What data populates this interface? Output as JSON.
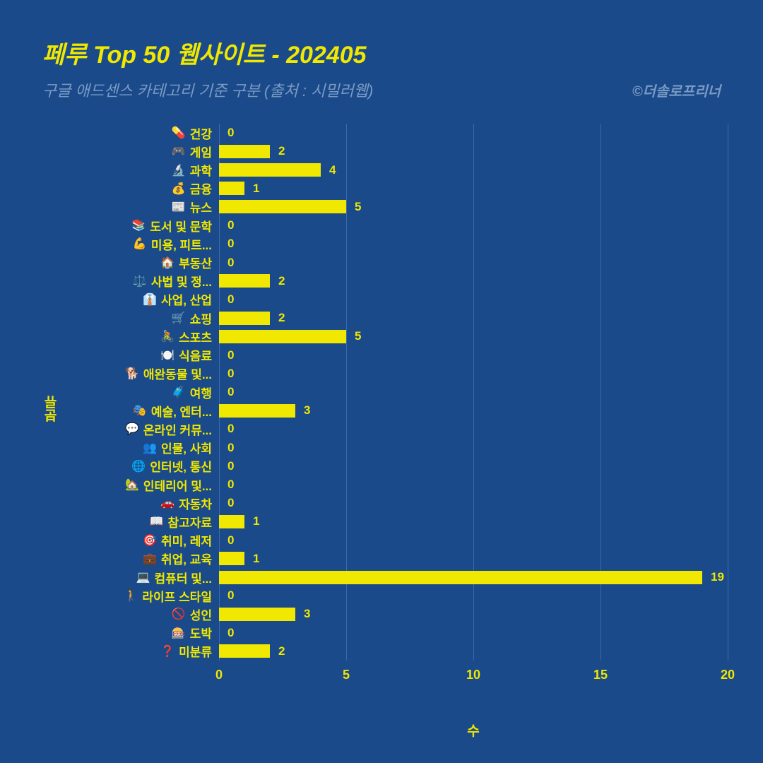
{
  "header": {
    "title": "페루 Top 50 웹사이트 - 202405",
    "subtitle": "구글 애드센스 카테고리 기준 구분 (출처 : 시밀러웹)",
    "credit": "©더솔로프리너"
  },
  "chart": {
    "type": "bar-horizontal",
    "x_axis_label": "수",
    "y_axis_label": "분류",
    "xlim": [
      0,
      20
    ],
    "xtick_step": 5,
    "xticks": [
      0,
      5,
      10,
      15,
      20
    ],
    "bar_color": "#f0e800",
    "text_color": "#f0e800",
    "grid_color": "#3a6aa8",
    "background_color": "#1a4a8a",
    "subtitle_color": "#7a9ac4",
    "label_fontsize": 17,
    "title_fontsize": 34,
    "categories": [
      {
        "emoji": "💊",
        "label": "건강",
        "value": 0
      },
      {
        "emoji": "🎮",
        "label": "게임",
        "value": 2
      },
      {
        "emoji": "🔬",
        "label": "과학",
        "value": 4
      },
      {
        "emoji": "💰",
        "label": "금융",
        "value": 1
      },
      {
        "emoji": "📰",
        "label": "뉴스",
        "value": 5
      },
      {
        "emoji": "📚",
        "label": "도서 및 문학",
        "value": 0
      },
      {
        "emoji": "💪",
        "label": "미용, 피트...",
        "value": 0
      },
      {
        "emoji": "🏠",
        "label": "부동산",
        "value": 0
      },
      {
        "emoji": "⚖️",
        "label": "사법 및 정...",
        "value": 2
      },
      {
        "emoji": "👔",
        "label": "사업, 산업",
        "value": 0
      },
      {
        "emoji": "🛒",
        "label": "쇼핑",
        "value": 2
      },
      {
        "emoji": "🚴",
        "label": "스포츠",
        "value": 5
      },
      {
        "emoji": "🍽️",
        "label": "식음료",
        "value": 0
      },
      {
        "emoji": "🐕",
        "label": "애완동물 및...",
        "value": 0
      },
      {
        "emoji": "🧳",
        "label": "여행",
        "value": 0
      },
      {
        "emoji": "🎭",
        "label": "예술, 엔터...",
        "value": 3
      },
      {
        "emoji": "💬",
        "label": "온라인 커뮤...",
        "value": 0
      },
      {
        "emoji": "👥",
        "label": "인물, 사회",
        "value": 0
      },
      {
        "emoji": "🌐",
        "label": "인터넷, 통신",
        "value": 0
      },
      {
        "emoji": "🏡",
        "label": "인테리어 및...",
        "value": 0
      },
      {
        "emoji": "🚗",
        "label": "자동차",
        "value": 0
      },
      {
        "emoji": "📖",
        "label": "참고자료",
        "value": 1
      },
      {
        "emoji": "🎯",
        "label": "취미, 레저",
        "value": 0
      },
      {
        "emoji": "💼",
        "label": "취업, 교육",
        "value": 1
      },
      {
        "emoji": "💻",
        "label": "컴퓨터 및...",
        "value": 19
      },
      {
        "emoji": "🚶",
        "label": "라이프 스타일",
        "value": 0
      },
      {
        "emoji": "🚫",
        "label": "성인",
        "value": 3
      },
      {
        "emoji": "🎰",
        "label": "도박",
        "value": 0
      },
      {
        "emoji": "❓",
        "label": "미분류",
        "value": 2
      }
    ]
  }
}
